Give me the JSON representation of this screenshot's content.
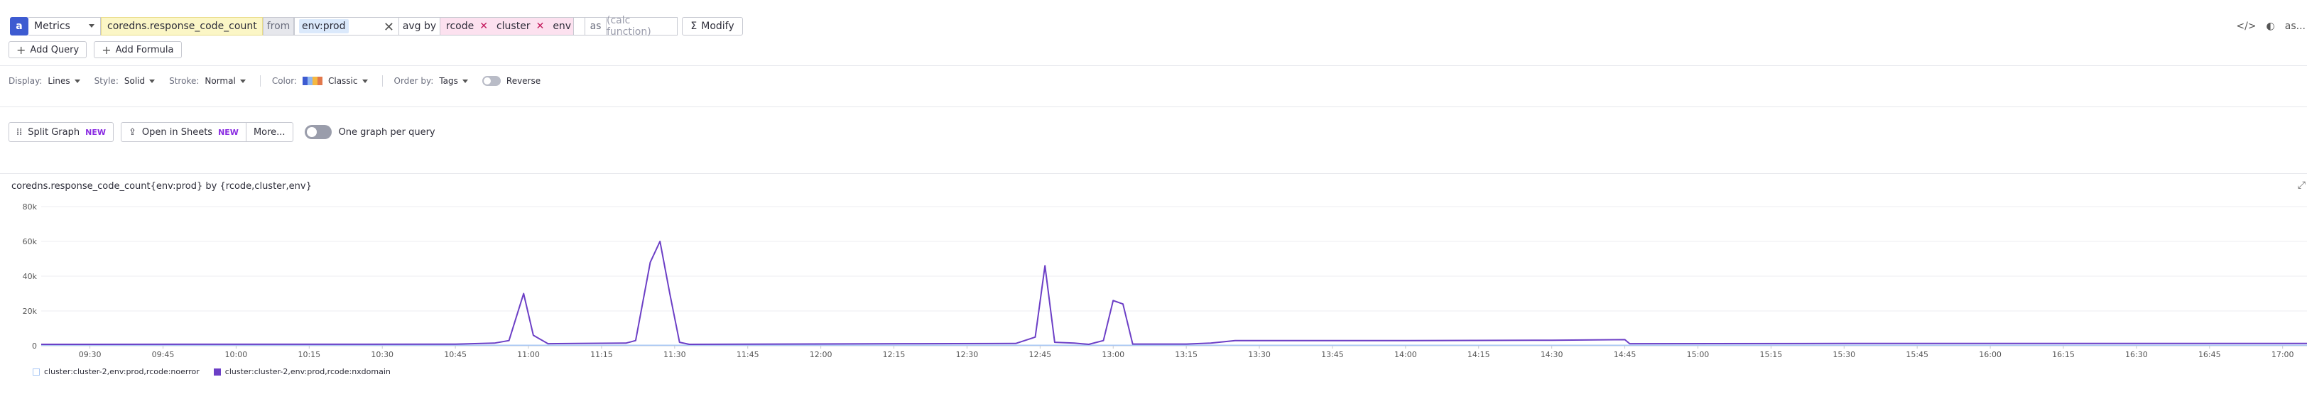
{
  "query": {
    "badge": "a",
    "source_type": "Metrics",
    "metric": "coredns.response_code_count",
    "from_label": "from",
    "from_tag": "env:prod",
    "aggregation": "avg by",
    "group_by": [
      "rcode",
      "cluster",
      "env"
    ],
    "as_label": "as",
    "calc_placeholder": "(calc function)",
    "modify_label": "Modify",
    "right_more": "as..."
  },
  "actions": {
    "add_query": "Add Query",
    "add_formula": "Add Formula"
  },
  "display_options": {
    "display_label": "Display:",
    "display_value": "Lines",
    "style_label": "Style:",
    "style_value": "Solid",
    "stroke_label": "Stroke:",
    "stroke_value": "Normal",
    "color_label": "Color:",
    "color_value": "Classic",
    "order_label": "Order by:",
    "order_value": "Tags",
    "reverse_label": "Reverse",
    "palette": [
      "#3d5bd1",
      "#8fb6f0",
      "#f5b840",
      "#e2784b"
    ]
  },
  "split": {
    "split_graph": "Split Graph",
    "new_badge": "NEW",
    "open_sheets": "Open in Sheets",
    "more": "More...",
    "one_graph": "One graph per query"
  },
  "graph": {
    "title": "coredns.response_code_count{env:prod} by {rcode,cluster,env}"
  },
  "chart_data": {
    "type": "line",
    "x_start": "09:20",
    "x_end": "17:05",
    "x_ticks": [
      "09:30",
      "09:45",
      "10:00",
      "10:15",
      "10:30",
      "10:45",
      "11:00",
      "11:15",
      "11:30",
      "11:45",
      "12:00",
      "12:15",
      "12:30",
      "12:45",
      "13:00",
      "13:15",
      "13:30",
      "13:45",
      "14:00",
      "14:15",
      "14:30",
      "14:45",
      "15:00",
      "15:15",
      "15:30",
      "15:45",
      "16:00",
      "16:15",
      "16:30",
      "16:45",
      "17:00"
    ],
    "y_ticks": [
      "0",
      "20k",
      "40k",
      "60k",
      "80k"
    ],
    "ylim": [
      0,
      80000
    ],
    "series": [
      {
        "name": "cluster:cluster-2,env:prod,rcode:noerror",
        "color": "#a9c8f5",
        "points": [
          [
            "09:20",
            300
          ],
          [
            "17:05",
            300
          ]
        ]
      },
      {
        "name": "cluster:cluster-2,env:prod,rcode:nxdomain",
        "color": "#6c3fc6",
        "points": [
          [
            "09:20",
            800
          ],
          [
            "10:45",
            900
          ],
          [
            "10:53",
            1500
          ],
          [
            "10:56",
            3000
          ],
          [
            "10:59",
            30000
          ],
          [
            "11:01",
            6000
          ],
          [
            "11:04",
            1200
          ],
          [
            "11:10",
            1300
          ],
          [
            "11:20",
            1500
          ],
          [
            "11:22",
            3000
          ],
          [
            "11:25",
            48000
          ],
          [
            "11:27",
            60000
          ],
          [
            "11:29",
            30000
          ],
          [
            "11:31",
            2000
          ],
          [
            "11:33",
            800
          ],
          [
            "12:20",
            1200
          ],
          [
            "12:40",
            1300
          ],
          [
            "12:44",
            5000
          ],
          [
            "12:46",
            46000
          ],
          [
            "12:48",
            2000
          ],
          [
            "12:52",
            1500
          ],
          [
            "12:55",
            800
          ],
          [
            "12:58",
            3000
          ],
          [
            "13:00",
            26000
          ],
          [
            "13:02",
            24000
          ],
          [
            "13:04",
            1000
          ],
          [
            "13:15",
            1000
          ],
          [
            "13:20",
            1500
          ],
          [
            "13:25",
            3000
          ],
          [
            "14:00",
            3000
          ],
          [
            "14:30",
            3200
          ],
          [
            "14:45",
            3500
          ],
          [
            "14:46",
            1200
          ],
          [
            "15:30",
            1300
          ],
          [
            "16:00",
            1300
          ],
          [
            "17:05",
            1300
          ]
        ]
      }
    ]
  }
}
